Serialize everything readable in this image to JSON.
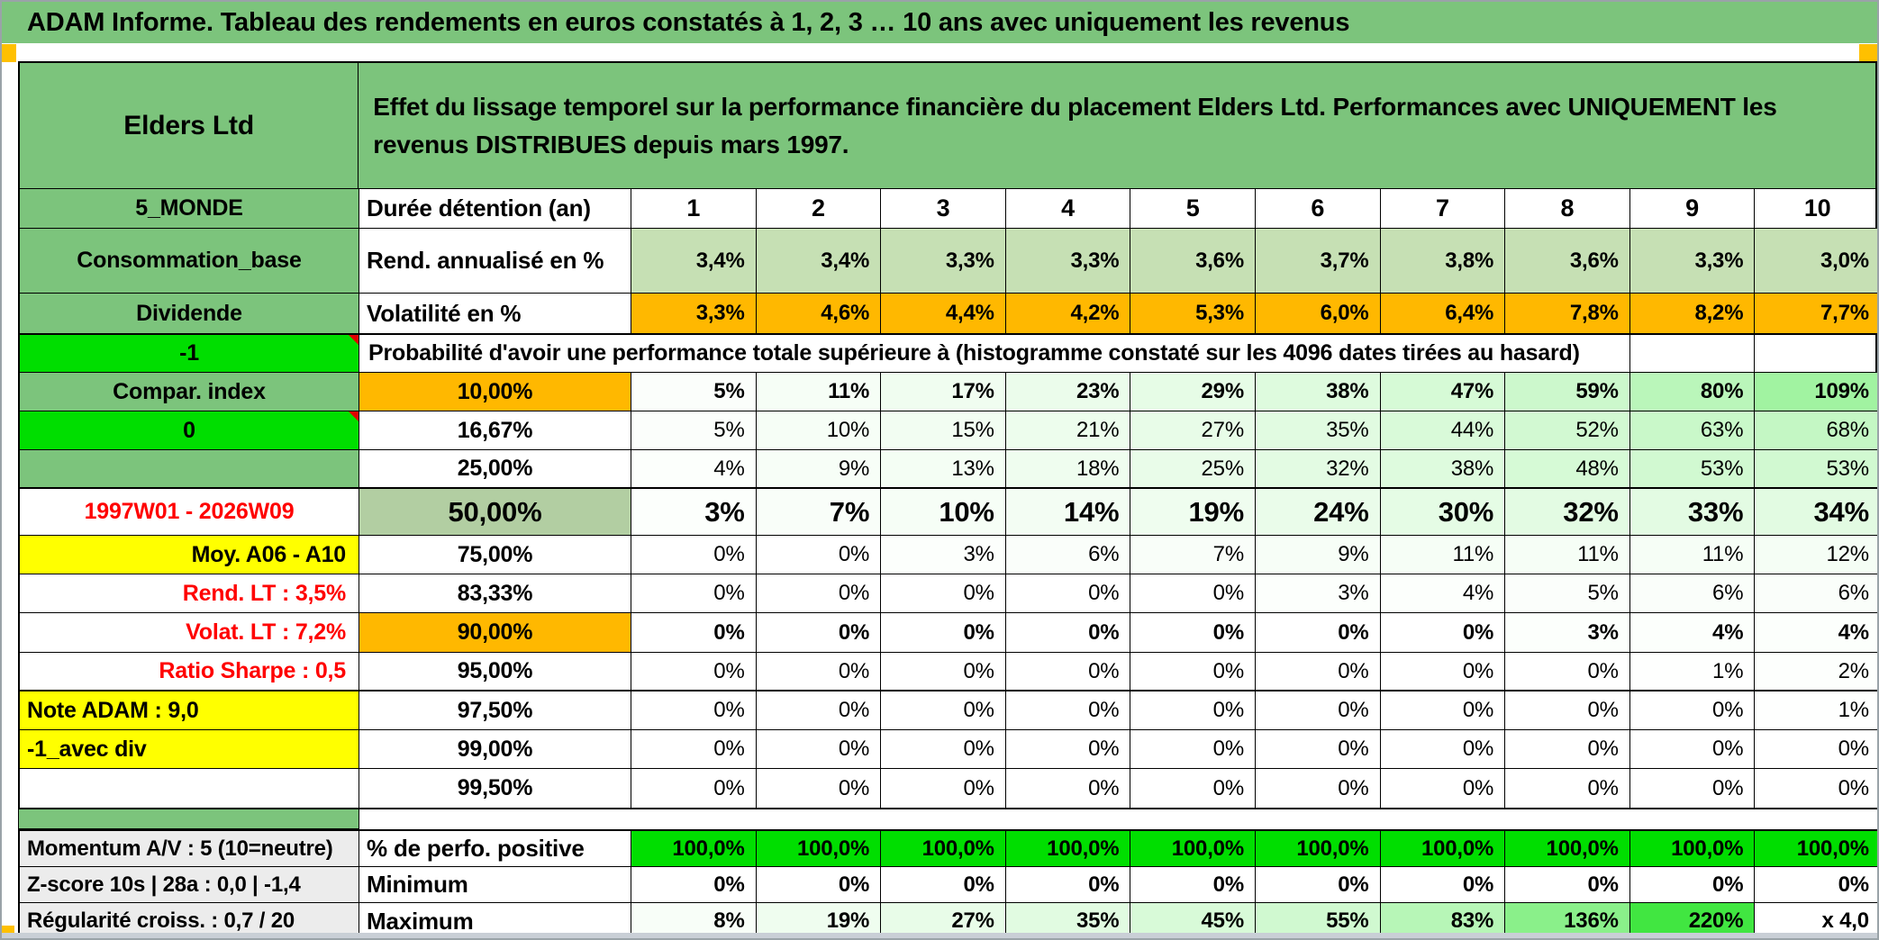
{
  "title_bar": {
    "text": "ADAM Informe. Tableau des rendements en euros constatés à 1, 2, 3 … 10 ans avec uniquement les revenus"
  },
  "header": {
    "entity": "Elders Ltd",
    "description": "Effet du lissage temporel sur la performance financière du placement Elders Ltd. Performances avec UNIQUEMENT les revenus DISTRIBUES depuis mars 1997."
  },
  "colors": {
    "band_green": "#7CC47C",
    "bright_green": "#00DE00",
    "amber": "#FFB800",
    "yellow": "#FFFF00",
    "light_green_fill": "#C6E0B4",
    "sage_fill": "#B2CEA2",
    "gray_fill": "#ECECEC",
    "red_text": "#FF0000",
    "marker_orange": "#FFC000"
  },
  "main_table": {
    "rows": [
      {
        "kind": "colhead",
        "side": {
          "text": "5_MONDE",
          "style": "green"
        },
        "head": {
          "text": "Durée détention (an)",
          "align": "left"
        },
        "texts": [
          "1",
          "2",
          "3",
          "4",
          "5",
          "6",
          "7",
          "8",
          "9",
          "10"
        ]
      },
      {
        "kind": "data",
        "side": {
          "text": "Consommation_base",
          "style": "green"
        },
        "head": {
          "text": "Rend. annualisé en %",
          "align": "left"
        },
        "fill": "lightgreen",
        "bold": true,
        "texts": [
          "3,4%",
          "3,4%",
          "3,3%",
          "3,3%",
          "3,6%",
          "3,7%",
          "3,8%",
          "3,6%",
          "3,3%",
          "3,0%"
        ]
      },
      {
        "kind": "data",
        "side": {
          "text": "Dividende",
          "style": "green"
        },
        "head": {
          "text": "Volatilité en %",
          "align": "left"
        },
        "fill": "amber",
        "bold": true,
        "texts": [
          "3,3%",
          "4,6%",
          "4,4%",
          "4,2%",
          "5,3%",
          "6,0%",
          "6,4%",
          "7,8%",
          "8,2%",
          "7,7%"
        ]
      },
      {
        "kind": "merged",
        "side": {
          "text": "-1",
          "style": "bright",
          "corner": true
        },
        "note": "Probabilité d'avoir une performance totale supérieure à (histogramme constaté sur les 4096 dates tirées au hasard)"
      },
      {
        "kind": "data",
        "side": {
          "text": "Compar. index",
          "style": "green"
        },
        "head": {
          "text": "10,00%",
          "style": "amber"
        },
        "fill": "shade",
        "bold": true,
        "values": [
          5,
          11,
          17,
          23,
          29,
          38,
          47,
          59,
          80,
          109
        ]
      },
      {
        "kind": "data",
        "side": {
          "text": "0",
          "style": "bright",
          "corner": true
        },
        "head": {
          "text": "16,67%"
        },
        "fill": "shade",
        "values": [
          5,
          10,
          15,
          21,
          27,
          35,
          44,
          52,
          63,
          68
        ]
      },
      {
        "kind": "data",
        "side": {
          "text": "",
          "style": "green"
        },
        "head": {
          "text": "25,00%"
        },
        "fill": "shade",
        "values": [
          4,
          9,
          13,
          18,
          25,
          32,
          38,
          48,
          53,
          53
        ]
      },
      {
        "kind": "data",
        "side": {
          "text": "1997W01 - 2026W09",
          "style": "redcenter"
        },
        "head": {
          "text": "50,00%",
          "style": "sage",
          "big": true
        },
        "fill": "shade",
        "bold": true,
        "big": true,
        "values": [
          3,
          7,
          10,
          14,
          19,
          24,
          30,
          32,
          33,
          34
        ]
      },
      {
        "kind": "data",
        "side": {
          "text": "Moy. A06 - A10",
          "style": "yellowright"
        },
        "head": {
          "text": "75,00%"
        },
        "fill": "shade",
        "values": [
          0,
          0,
          3,
          6,
          7,
          9,
          11,
          11,
          11,
          12
        ]
      },
      {
        "kind": "data",
        "side": {
          "text": "Rend. LT :  3,5%",
          "style": "redright"
        },
        "head": {
          "text": "83,33%"
        },
        "fill": "shade",
        "values": [
          0,
          0,
          0,
          0,
          0,
          3,
          4,
          5,
          6,
          6
        ]
      },
      {
        "kind": "data",
        "side": {
          "text": "Volat. LT :  7,2%",
          "style": "redright"
        },
        "head": {
          "text": "90,00%",
          "style": "amber"
        },
        "fill": "shade",
        "bold": true,
        "values": [
          0,
          0,
          0,
          0,
          0,
          0,
          0,
          3,
          4,
          4
        ]
      },
      {
        "kind": "data",
        "side": {
          "text": "Ratio Sharpe :  0,5",
          "style": "redright"
        },
        "head": {
          "text": "95,00%"
        },
        "fill": "shade",
        "values": [
          0,
          0,
          0,
          0,
          0,
          0,
          0,
          0,
          1,
          2
        ]
      },
      {
        "kind": "data",
        "side": {
          "text": "Note ADAM : 9,0",
          "style": "yellowleft"
        },
        "head": {
          "text": "97,50%"
        },
        "fill": "shade",
        "values": [
          0,
          0,
          0,
          0,
          0,
          0,
          0,
          0,
          0,
          1
        ]
      },
      {
        "kind": "data",
        "side": {
          "text": "-1_avec div",
          "style": "yellowleft"
        },
        "head": {
          "text": "99,00%"
        },
        "fill": "shade",
        "values": [
          0,
          0,
          0,
          0,
          0,
          0,
          0,
          0,
          0,
          0
        ]
      },
      {
        "kind": "data",
        "side": {
          "text": "",
          "style": "white"
        },
        "head": {
          "text": "99,50%"
        },
        "fill": "shade",
        "values": [
          0,
          0,
          0,
          0,
          0,
          0,
          0,
          0,
          0,
          0
        ]
      }
    ]
  },
  "footer_table": {
    "rows": [
      {
        "kind": "data",
        "side": {
          "text": "Momentum A/V : 5 (10=neutre)",
          "style": "gray"
        },
        "head": {
          "text": "% de perfo. positive",
          "align": "left"
        },
        "fill": "bright",
        "bold": true,
        "texts": [
          "100,0%",
          "100,0%",
          "100,0%",
          "100,0%",
          "100,0%",
          "100,0%",
          "100,0%",
          "100,0%",
          "100,0%",
          "100,0%"
        ]
      },
      {
        "kind": "data",
        "side": {
          "text": "Z-score 10s | 28a : 0,0 | -1,4",
          "style": "gray"
        },
        "head": {
          "text": "Minimum",
          "align": "left"
        },
        "fill": "white",
        "bold": true,
        "texts": [
          "0%",
          "0%",
          "0%",
          "0%",
          "0%",
          "0%",
          "0%",
          "0%",
          "0%",
          "0%"
        ]
      },
      {
        "kind": "data",
        "side": {
          "text": "Régularité croiss. : 0,7 / 20",
          "style": "gray"
        },
        "head": {
          "text": "Maximum",
          "align": "left"
        },
        "fill": "shade",
        "bold": true,
        "texts": [
          "8%",
          "19%",
          "27%",
          "35%",
          "45%",
          "55%",
          "83%",
          "136%",
          "220%",
          "x 4,0"
        ],
        "values": [
          8,
          19,
          27,
          35,
          45,
          55,
          83,
          136,
          220,
          null
        ]
      }
    ]
  }
}
